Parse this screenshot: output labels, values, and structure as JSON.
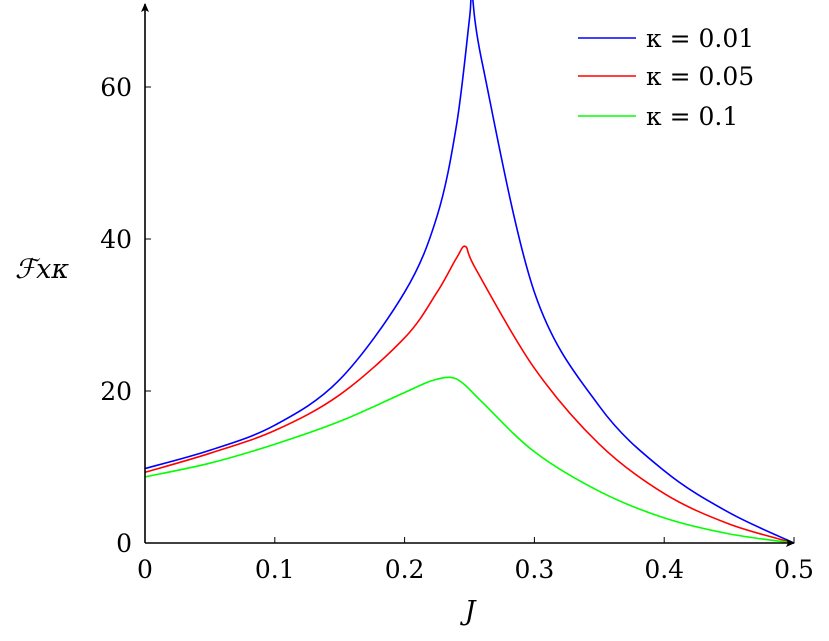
{
  "chart_data": {
    "type": "line",
    "title": "",
    "xlabel": "J",
    "ylabel": "ℱxκ",
    "xlim": [
      0,
      0.5
    ],
    "ylim": [
      0,
      72
    ],
    "xticks": [
      0,
      0.1,
      0.2,
      0.3,
      0.4,
      0.5
    ],
    "xtick_labels": [
      "0",
      "0.1",
      "0.2",
      "0.3",
      "0.4",
      "0.5"
    ],
    "yticks": [
      0,
      20,
      40,
      60
    ],
    "ytick_labels": [
      "0",
      "20",
      "40",
      "60"
    ],
    "grid": false,
    "legend_position": "top-right",
    "series": [
      {
        "name": "κ = 0.01",
        "color": "#0000ff",
        "x": [
          0,
          0.05,
          0.1,
          0.15,
          0.2,
          0.225,
          0.24,
          0.25,
          0.252,
          0.26,
          0.3,
          0.35,
          0.4,
          0.45,
          0.5
        ],
        "y": [
          9.8,
          12.2,
          15.5,
          21.5,
          33,
          43,
          55,
          69,
          72,
          63,
          33,
          18,
          9.5,
          4,
          0
        ]
      },
      {
        "name": "κ = 0.05",
        "color": "#ff0000",
        "x": [
          0,
          0.05,
          0.1,
          0.15,
          0.2,
          0.225,
          0.24,
          0.247,
          0.255,
          0.3,
          0.35,
          0.4,
          0.45,
          0.5
        ],
        "y": [
          9.3,
          11.8,
          14.8,
          19.5,
          27,
          33,
          37.5,
          39,
          36,
          23,
          13,
          6.5,
          2.5,
          0
        ]
      },
      {
        "name": "κ = 0.1",
        "color": "#00ff00",
        "x": [
          0,
          0.05,
          0.1,
          0.15,
          0.2,
          0.22,
          0.235,
          0.245,
          0.26,
          0.3,
          0.35,
          0.4,
          0.45,
          0.5
        ],
        "y": [
          8.7,
          10.5,
          13,
          16,
          19.8,
          21.3,
          21.8,
          21,
          18.5,
          12,
          6.8,
          3.3,
          1.2,
          0
        ]
      }
    ]
  }
}
